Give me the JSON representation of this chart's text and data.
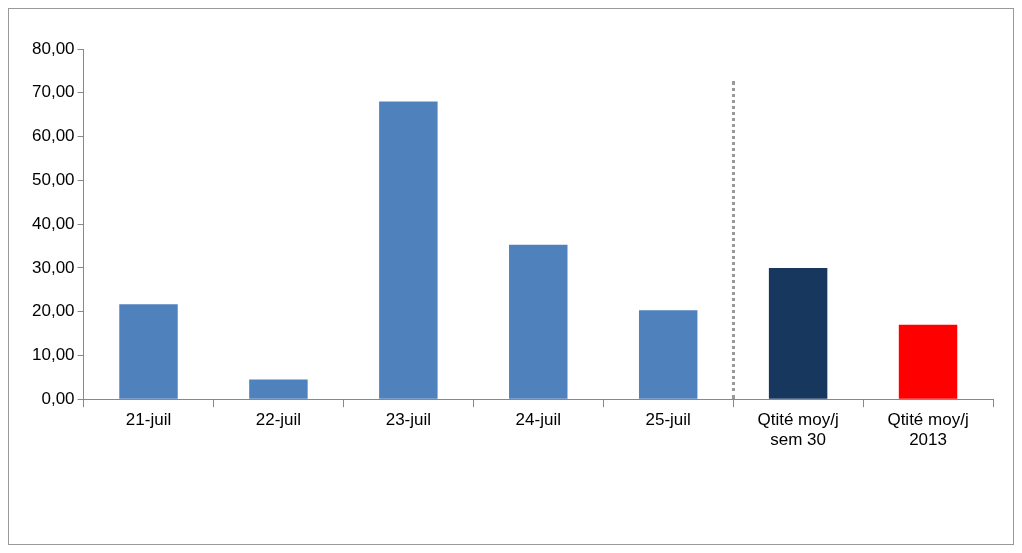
{
  "chart_data": {
    "type": "bar",
    "categories": [
      "21-juil",
      "22-juil",
      "23-juil",
      "24-juil",
      "25-juil",
      "Qtité moy/j sem 30",
      "Qtité moy/j 2013"
    ],
    "values": [
      21.7,
      4.5,
      68,
      35.3,
      20.3,
      30,
      17
    ],
    "colors": [
      "#4f81bd",
      "#4f81bd",
      "#4f81bd",
      "#4f81bd",
      "#4f81bd",
      "#17375e",
      "#ff0000"
    ],
    "ylim": [
      0,
      80
    ],
    "yticks": [
      {
        "value": 0,
        "label": "0,00"
      },
      {
        "value": 10,
        "label": "10,00"
      },
      {
        "value": 20,
        "label": "20,00"
      },
      {
        "value": 30,
        "label": "30,00"
      },
      {
        "value": 40,
        "label": "40,00"
      },
      {
        "value": 50,
        "label": "50,00"
      },
      {
        "value": 60,
        "label": "60,00"
      },
      {
        "value": 70,
        "label": "70,00"
      },
      {
        "value": 80,
        "label": "80,00"
      }
    ],
    "grid": false,
    "legend": false
  }
}
